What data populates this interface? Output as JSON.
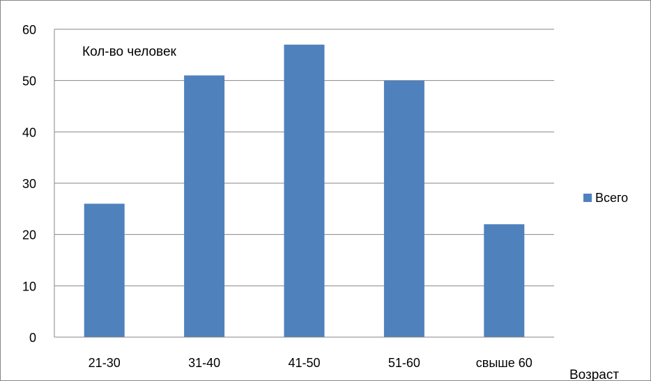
{
  "chart_data": {
    "type": "bar",
    "categories": [
      "21-30",
      "31-40",
      "41-50",
      "51-60",
      "свыше 60"
    ],
    "series": [
      {
        "name": "Всего",
        "values": [
          26,
          51,
          57,
          50,
          22
        ]
      }
    ],
    "ylabel": "Кол-во человек",
    "xlabel": "Возраст",
    "ylim": [
      0,
      60
    ],
    "yticks": [
      0,
      10,
      20,
      30,
      40,
      50,
      60
    ],
    "grid": true,
    "legend_position": "right",
    "colors": {
      "bar": "#4F81BD",
      "grid": "#868686",
      "frame": "#868686"
    }
  }
}
